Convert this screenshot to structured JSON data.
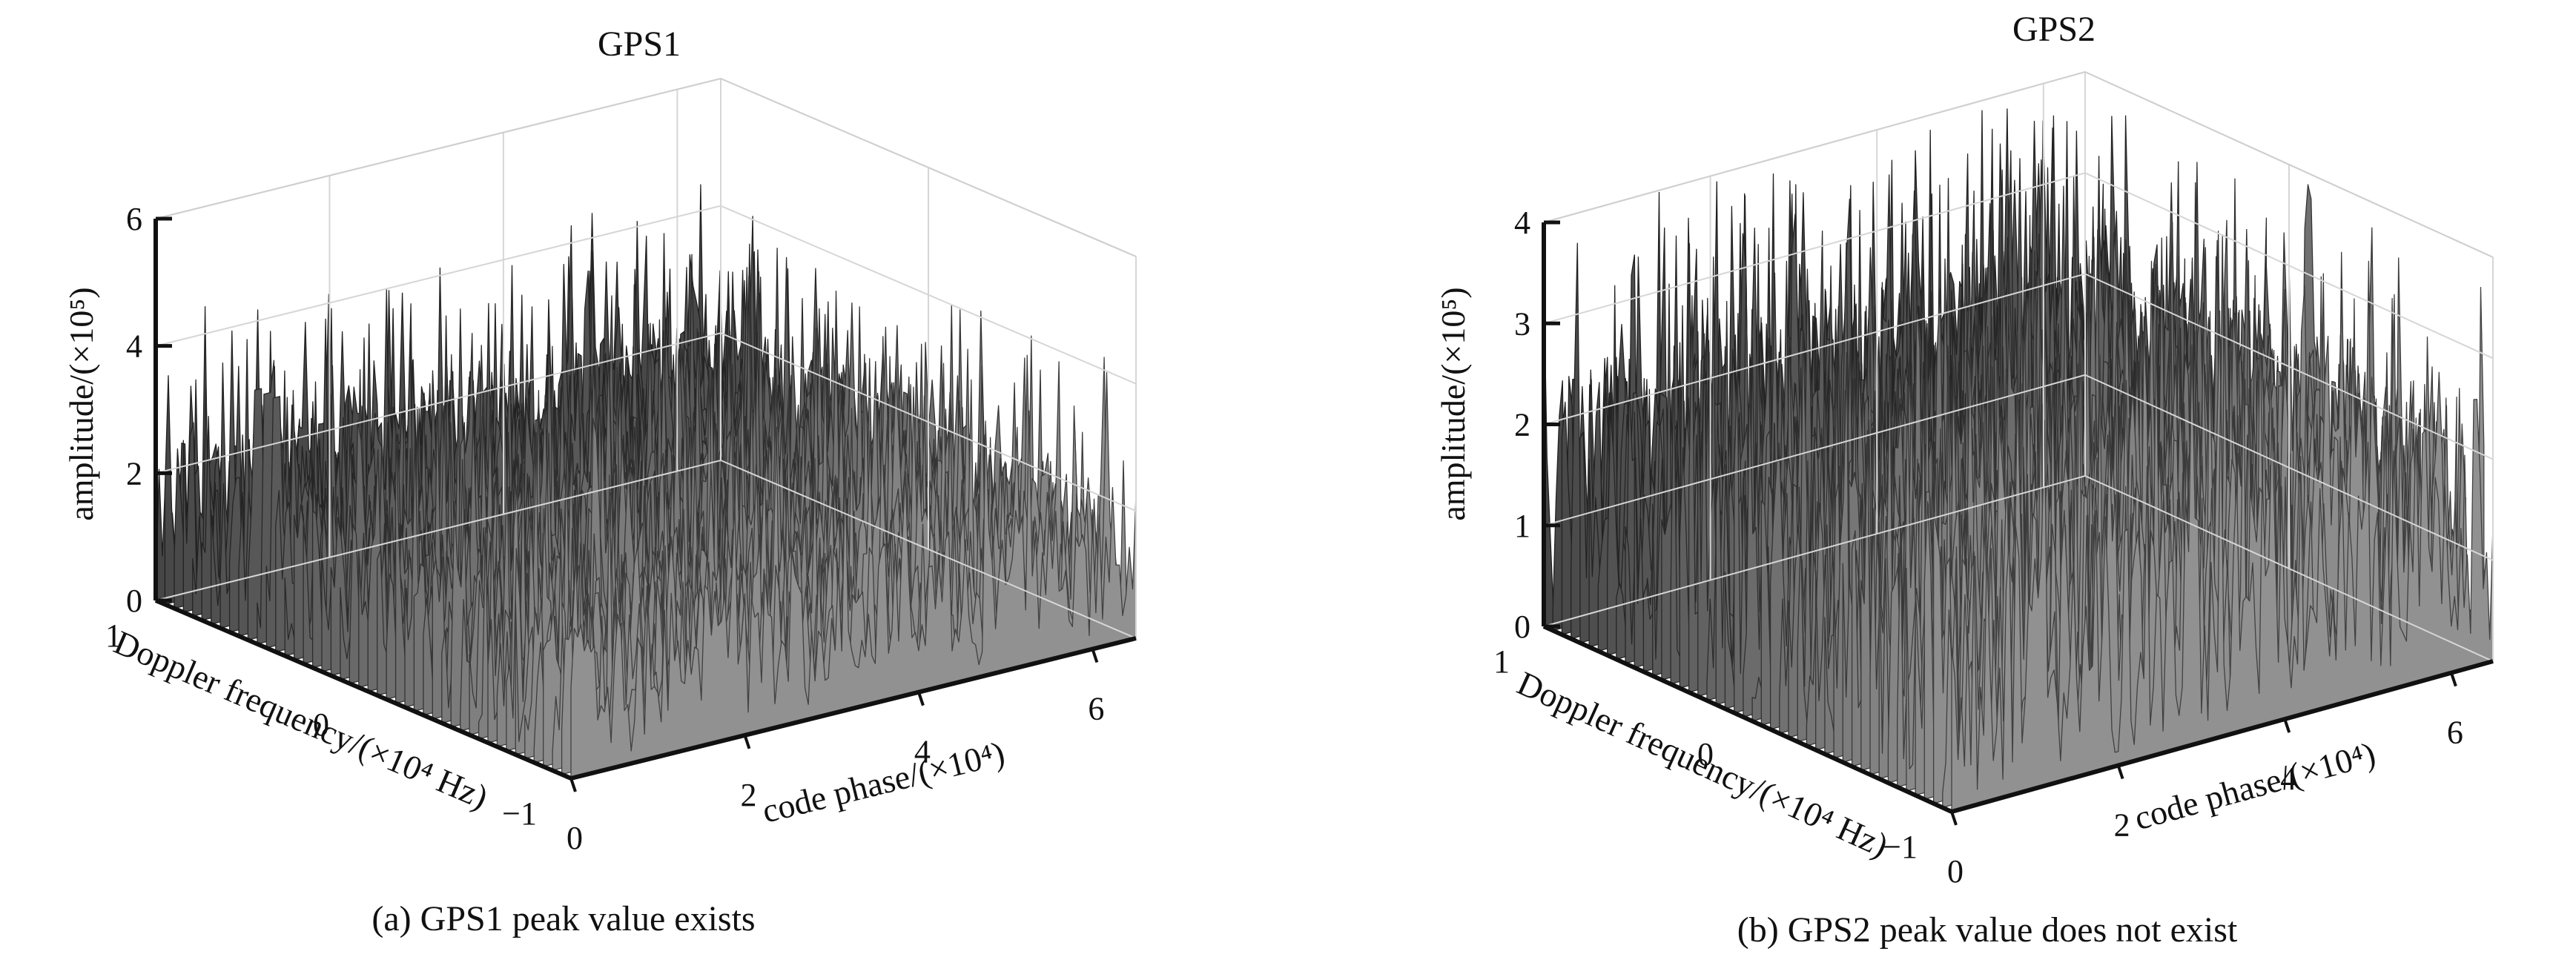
{
  "chart_data": [
    {
      "type": "surface3d",
      "title": "GPS1",
      "caption": "(a) GPS1 peak value exists",
      "zlabel": "amplitude/(×10⁵)",
      "xlabel": "code phase/(×10⁴)",
      "ylabel": "Doppler frequency/(×10⁴ Hz)",
      "xlim": [
        0,
        6.5
      ],
      "ylim": [
        -1,
        1
      ],
      "zlim": [
        0,
        6
      ],
      "xticks": [
        0,
        2,
        4,
        6
      ],
      "yticks": [
        -1,
        0,
        1
      ],
      "zticks": [
        0,
        2,
        4,
        6
      ],
      "xtick_labels": [
        "0",
        "2",
        "4",
        "6"
      ],
      "ytick_labels": [
        "−1",
        "0",
        "1"
      ],
      "ztick_labels": [
        "0",
        "2",
        "4",
        "6"
      ],
      "noise_floor_mean": 2.2,
      "noise_peak_max": 4.6,
      "peak": {
        "x": 0.1,
        "y": 0.5,
        "z": 3.9
      },
      "colormap": "gray",
      "grid": true
    },
    {
      "type": "surface3d",
      "title": "GPS2",
      "caption": "(b) GPS2 peak value does not exist",
      "zlabel": "amplitude/(×10⁵)",
      "xlabel": "code phase/(×10⁴)",
      "ylabel": "Doppler frequency/(×10⁴ Hz)",
      "xlim": [
        0,
        6.5
      ],
      "ylim": [
        -1,
        1
      ],
      "zlim": [
        0,
        4
      ],
      "xticks": [
        0,
        2,
        4,
        6
      ],
      "yticks": [
        -1,
        0,
        1
      ],
      "zticks": [
        0,
        1,
        2,
        3,
        4
      ],
      "xtick_labels": [
        "0",
        "2",
        "4",
        "6"
      ],
      "ytick_labels": [
        "−1",
        "0",
        "1"
      ],
      "ztick_labels": [
        "0",
        "1",
        "2",
        "3",
        "4"
      ],
      "noise_floor_mean": 2.3,
      "noise_peak_max": 4.2,
      "peak": null,
      "colormap": "gray",
      "grid": true
    }
  ]
}
